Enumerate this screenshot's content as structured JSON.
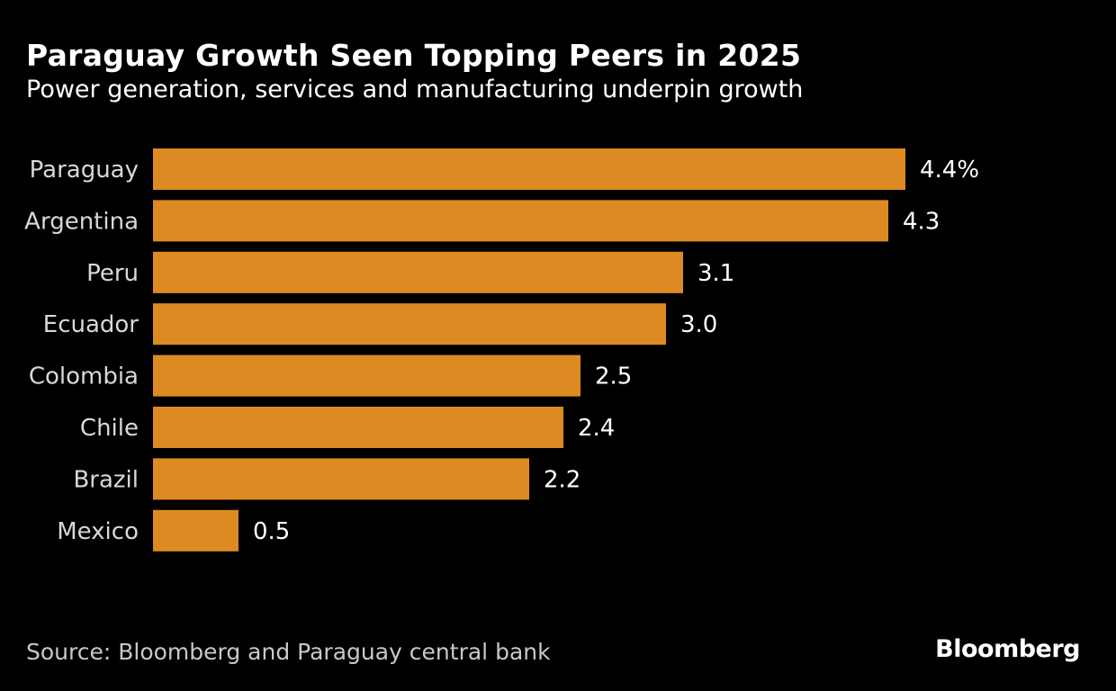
{
  "chart_data": {
    "type": "bar",
    "orientation": "horizontal",
    "title": "Paraguay Growth Seen Topping Peers in 2025",
    "subtitle": "Power generation, services and manufacturing underpin growth",
    "categories": [
      "Paraguay",
      "Argentina",
      "Peru",
      "Ecuador",
      "Colombia",
      "Chile",
      "Brazil",
      "Mexico"
    ],
    "values": [
      4.4,
      4.3,
      3.1,
      3.0,
      2.5,
      2.4,
      2.2,
      0.5
    ],
    "value_labels": [
      "4.4%",
      "4.3",
      "3.1",
      "3.0",
      "2.5",
      "2.4",
      "2.2",
      "0.5"
    ],
    "xlim": [
      0,
      4.4
    ],
    "grid": false,
    "bar_color": "#DE8A22",
    "source": "Source: Bloomberg and Paraguay central bank",
    "logo": "Bloomberg"
  }
}
